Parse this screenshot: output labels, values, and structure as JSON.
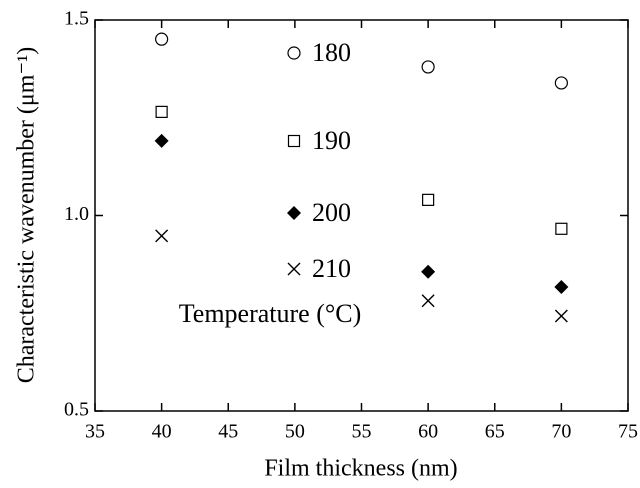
{
  "chart_data": {
    "type": "scatter",
    "x_label": "Film thickness (nm)",
    "y_label": "Characteristic wavenumber (μm⁻¹)",
    "legend_title": "Temperature (°C)",
    "legend_position": "center",
    "xlim": [
      35,
      75
    ],
    "xticks": [
      35,
      40,
      45,
      50,
      55,
      60,
      65,
      70,
      75
    ],
    "ylim": [
      0.5,
      1.5
    ],
    "yticks": [
      {
        "value": 0.5,
        "label": "0.5"
      },
      {
        "value": 1.0,
        "label": "1.0"
      },
      {
        "value": 1.5,
        "label": "1.5"
      }
    ],
    "series": [
      {
        "name": "180",
        "marker": "circle",
        "color": "#000000",
        "x": [
          40,
          60,
          70
        ],
        "values": [
          1.451,
          1.38,
          1.339
        ]
      },
      {
        "name": "190",
        "marker": "square",
        "color": "#000000",
        "x": [
          40,
          60,
          70
        ],
        "values": [
          1.265,
          1.04,
          0.966
        ]
      },
      {
        "name": "200",
        "marker": "diamond",
        "color": "#000000",
        "x": [
          40,
          60,
          70
        ],
        "values": [
          1.191,
          0.856,
          0.817
        ]
      },
      {
        "name": "210",
        "marker": "x",
        "color": "#000000",
        "x": [
          40,
          60,
          70
        ],
        "values": [
          0.948,
          0.782,
          0.743
        ]
      }
    ]
  }
}
